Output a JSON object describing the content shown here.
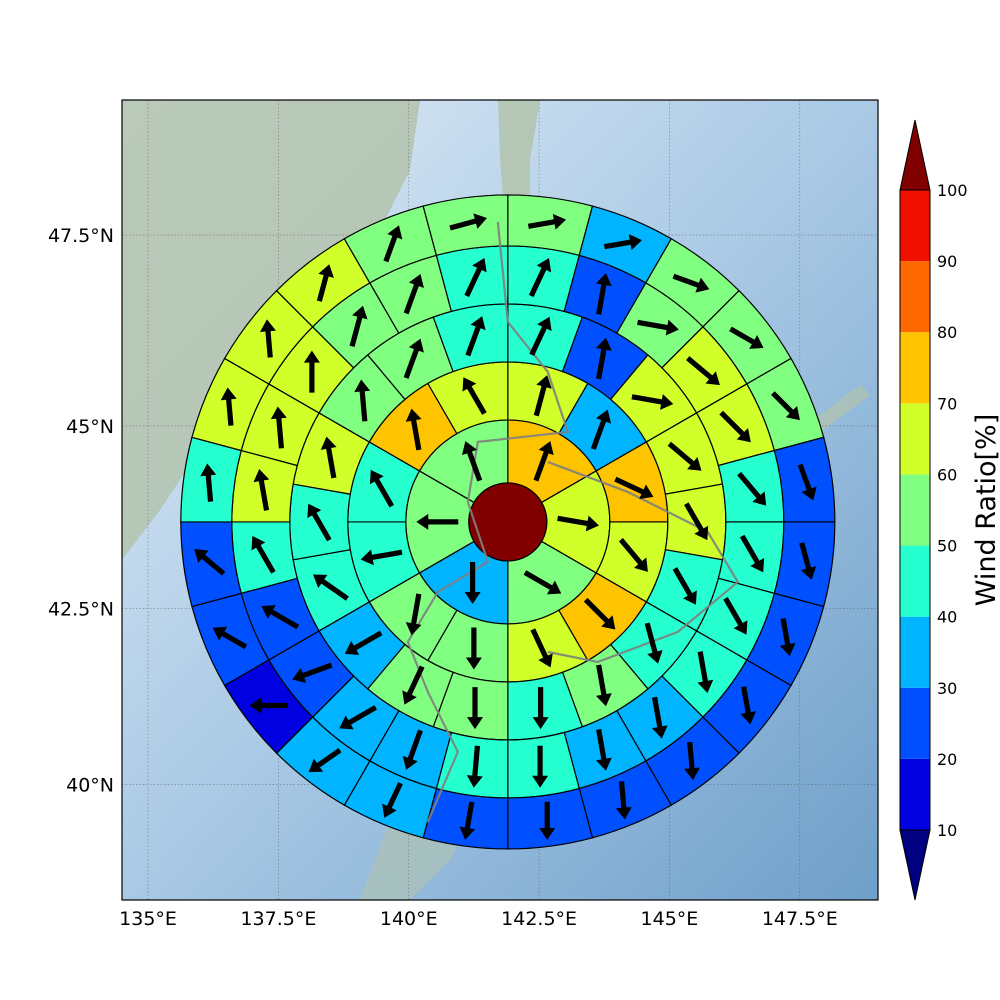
{
  "chart_data": {
    "type": "heatmap",
    "subtype": "polar-sector-map-with-wind-vectors",
    "basemap": "shaded-relief",
    "map_extent": {
      "lon": [
        134.5,
        149.0
      ],
      "lat": [
        38.3,
        49.2
      ]
    },
    "center": {
      "lon": 141.9,
      "lat": 43.7
    },
    "grid": true,
    "x_ticks": [
      {
        "value": 135,
        "label": "135°E"
      },
      {
        "value": 137.5,
        "label": "137.5°E"
      },
      {
        "value": 140,
        "label": "140°E"
      },
      {
        "value": 142.5,
        "label": "142.5°E"
      },
      {
        "value": 145,
        "label": "145°E"
      },
      {
        "value": 147.5,
        "label": "147.5°E"
      }
    ],
    "y_ticks": [
      {
        "value": 40,
        "label": "40°N"
      },
      {
        "value": 42.5,
        "label": "42.5°N"
      },
      {
        "value": 45,
        "label": "45°N"
      },
      {
        "value": 47.5,
        "label": "47.5°N"
      }
    ],
    "colorbar": {
      "label": "Wind Ratio[%]",
      "levels": [
        10,
        20,
        30,
        40,
        50,
        60,
        70,
        80,
        90,
        100
      ],
      "tick_labels": [
        "10",
        "20",
        "30",
        "40",
        "50",
        "60",
        "70",
        "80",
        "90",
        "100"
      ],
      "colors": [
        "#000080",
        "#0000e0",
        "#0050ff",
        "#00b4ff",
        "#26ffd0",
        "#80ff80",
        "#d0ff2a",
        "#ffc400",
        "#ff6a00",
        "#f21000",
        "#800000"
      ],
      "extend": "both"
    },
    "center_value": 100,
    "rings": [
      {
        "ring": 1,
        "sectors": 6,
        "values": [
          75,
          65,
          55,
          35,
          55,
          55
        ],
        "arrow_dir_deg": [
          20,
          100,
          120,
          180,
          270,
          340
        ]
      },
      {
        "ring": 2,
        "sectors": 12,
        "values": [
          65,
          35,
          75,
          65,
          75,
          65,
          55,
          55,
          45,
          45,
          75,
          65
        ],
        "arrow_dir_deg": [
          15,
          20,
          115,
          140,
          135,
          155,
          180,
          190,
          260,
          330,
          350,
          330
        ]
      },
      {
        "ring": 3,
        "sectors": 18,
        "values": [
          45,
          25,
          65,
          65,
          65,
          45,
          45,
          55,
          45,
          55,
          55,
          35,
          45,
          45,
          65,
          55,
          55,
          45
        ],
        "arrow_dir_deg": [
          25,
          10,
          100,
          130,
          150,
          150,
          165,
          170,
          180,
          180,
          205,
          240,
          305,
          330,
          350,
          355,
          20,
          20
        ]
      },
      {
        "ring": 4,
        "sectors": 24,
        "values": [
          45,
          25,
          55,
          65,
          65,
          45,
          45,
          45,
          45,
          35,
          35,
          45,
          45,
          35,
          35,
          25,
          25,
          45,
          65,
          65,
          65,
          55,
          55,
          45
        ],
        "arrow_dir_deg": [
          25,
          10,
          100,
          130,
          135,
          140,
          150,
          150,
          170,
          170,
          170,
          180,
          185,
          200,
          240,
          250,
          300,
          330,
          350,
          355,
          0,
          15,
          20,
          25
        ]
      },
      {
        "ring": 5,
        "sectors": 24,
        "values": [
          55,
          35,
          55,
          55,
          55,
          25,
          25,
          25,
          25,
          25,
          25,
          25,
          25,
          35,
          35,
          15,
          25,
          25,
          45,
          65,
          65,
          65,
          55,
          55
        ],
        "arrow_dir_deg": [
          80,
          80,
          110,
          120,
          135,
          160,
          165,
          170,
          170,
          175,
          175,
          180,
          190,
          205,
          235,
          270,
          300,
          310,
          355,
          355,
          355,
          15,
          20,
          75
        ]
      }
    ]
  }
}
